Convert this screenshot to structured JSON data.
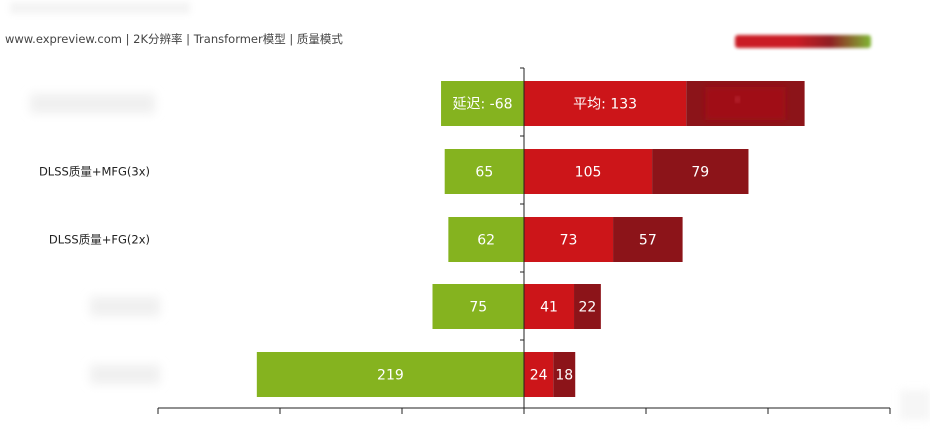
{
  "header": {
    "subtitle": "www.expreview.com | 2K分辨率 | Transformer模型 | 质量模式"
  },
  "legend": {
    "swatch_colors": [
      "#c8101a",
      "#8b1418",
      "#7ab32a"
    ]
  },
  "chart_data": {
    "type": "bar",
    "orientation": "horizontal",
    "stacked": true,
    "diverging": true,
    "subtitle": "www.expreview.com | 2K分辨率 | Transformer模型 | 质量模式",
    "categories": [
      "",
      "DLSS质量+MFG(3x)",
      "DLSS质量+FG(2x)",
      "",
      ""
    ],
    "series": [
      {
        "color": "#85b31f",
        "values": [
          -68,
          -65,
          -62,
          -75,
          -219
        ],
        "labels": [
          "延迟: -68",
          "65",
          "62",
          "75",
          "219"
        ]
      },
      {
        "color": "#cc1519",
        "values": [
          133,
          105,
          73,
          41,
          24
        ],
        "labels": [
          "平均: 133",
          "105",
          "73",
          "41",
          "24"
        ]
      },
      {
        "color": "#8c1419",
        "values": [
          97,
          79,
          57,
          22,
          18
        ],
        "labels": [
          "",
          "79",
          "57",
          "22",
          "18"
        ]
      }
    ],
    "xlim": [
      -300,
      300
    ],
    "grid": false,
    "legend_position": "top-right"
  }
}
